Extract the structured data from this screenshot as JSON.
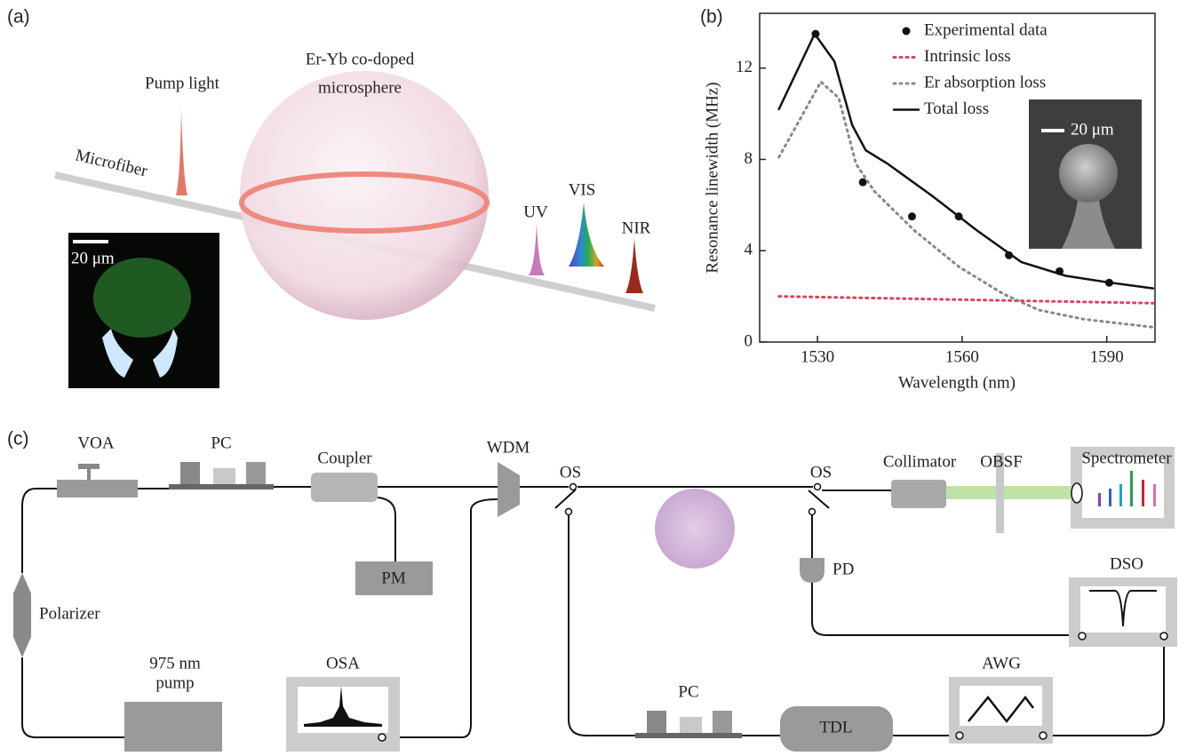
{
  "panel_a": {
    "label": "(a)",
    "pump": "Pump light",
    "sphere_line1": "Er-Yb co-doped",
    "sphere_line2": "microsphere",
    "fiber": "Microfiber",
    "uv": "UV",
    "vis": "VIS",
    "nir": "NIR",
    "scale": "20 μm"
  },
  "chart_data": {
    "type": "line",
    "label": "(b)",
    "xlabel": "Wavelength (nm)",
    "ylabel": "Resonance linewidth (MHz)",
    "inset_scale": "20 μm",
    "xlim": [
      1518,
      1600
    ],
    "ylim": [
      0,
      14.4
    ],
    "xticks": [
      1530,
      1560,
      1590
    ],
    "yticks": [
      0,
      4,
      8,
      12
    ],
    "series": [
      {
        "name": "Experimental data",
        "color": "#111111",
        "mode": "markers",
        "x": [
          1529.6,
          1539.4,
          1549.6,
          1559.3,
          1569.7,
          1580.2,
          1590.5
        ],
        "values": [
          13.5,
          7.0,
          5.5,
          5.5,
          3.8,
          3.1,
          2.6
        ]
      },
      {
        "name": "Intrinsic loss",
        "color": "#e0405a",
        "mode": "dotted",
        "x": [
          1522,
          1600
        ],
        "values": [
          2.0,
          1.7
        ]
      },
      {
        "name": "Er absorption loss",
        "color": "#888888",
        "mode": "dotted",
        "x": [
          1522,
          1530.7,
          1534.4,
          1538,
          1541.8,
          1550,
          1559.3,
          1568.6,
          1575.9,
          1585.2,
          1599.6
        ],
        "values": [
          8.1,
          11.4,
          10.7,
          7.8,
          6.6,
          4.9,
          3.3,
          2.1,
          1.4,
          1.0,
          0.65
        ]
      },
      {
        "name": "Total loss",
        "color": "#111111",
        "mode": "solid",
        "x": [
          1522,
          1529.4,
          1533.5,
          1537.2,
          1540,
          1544.6,
          1553.8,
          1563,
          1572.3,
          1581.5,
          1590.7,
          1599.6
        ],
        "values": [
          10.2,
          13.5,
          12.3,
          9.5,
          8.4,
          7.8,
          6.4,
          4.9,
          3.5,
          2.9,
          2.6,
          2.35
        ]
      }
    ]
  },
  "panel_c": {
    "label": "(c)",
    "voa": "VOA",
    "pc1": "PC",
    "coupler": "Coupler",
    "wdm": "WDM",
    "os1": "OS",
    "os2": "OS",
    "collimator": "Collimator",
    "obsf": "OBSF",
    "spectrometer": "Spectrometer",
    "pm": "PM",
    "pd": "PD",
    "dso": "DSO",
    "polarizer": "Polarizer",
    "pump_line1": "975 nm",
    "pump_line2": "pump",
    "osa": "OSA",
    "pc2": "PC",
    "tdl": "TDL",
    "awg": "AWG"
  }
}
